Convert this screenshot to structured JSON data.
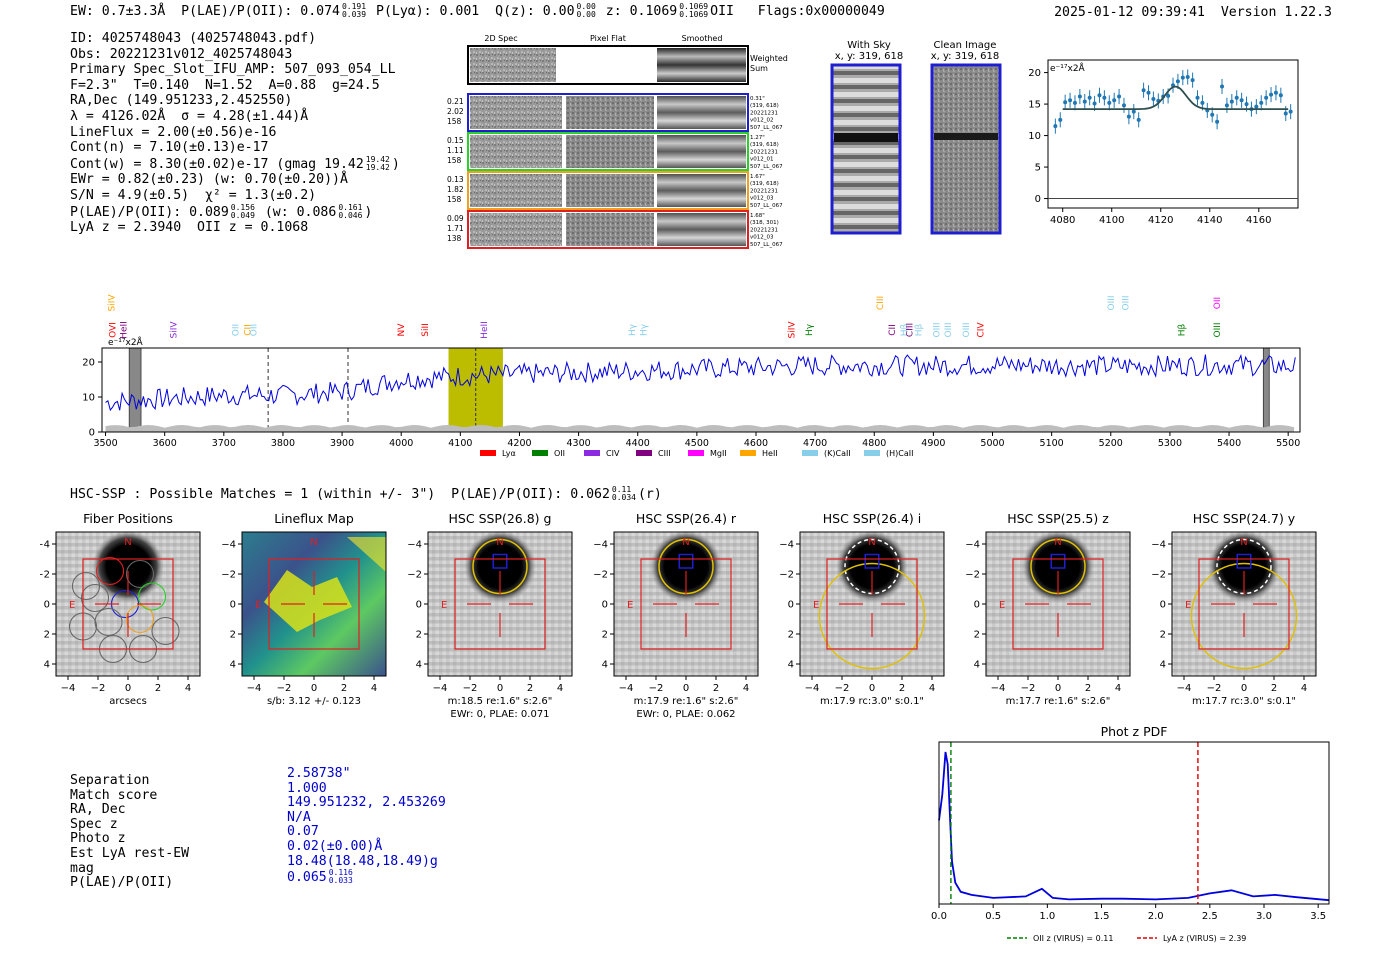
{
  "header": {
    "ew": "EW: 0.7±3.3Å",
    "plae_label": "P(LAE)/P(OII): 0.074",
    "plae_hi": "0.191",
    "plae_lo": "0.039",
    "plya": "P(Lyα): 0.001",
    "qz_label": "Q(z): 0.00",
    "qz_hi": "0.00",
    "qz_lo": "0.00",
    "z_label": "z: 0.1069",
    "z_hi": "0.1069",
    "z_lo": "0.1069",
    "z_line": "OII",
    "flags": "Flags:0x00000049",
    "datetime": "2025-01-12 09:39:41",
    "version": "Version 1.22.3"
  },
  "info": {
    "id": "ID: 4025748043 (4025748043.pdf)",
    "obs": "Obs: 20221231v012_4025748043",
    "primary": "Primary Spec_Slot_IFU_AMP: 507_093_054_LL",
    "f_line": "F=2.3\"  T=0.140  N=1.52  A=0.88  g=24.5",
    "radec": "RA,Dec (149.951233,2.452550)",
    "lambda": "λ = 4126.02Å  σ = 4.28(±1.44)Å",
    "lineflux": "LineFlux = 2.00(±0.56)e-16",
    "contn": "Cont(n) = 7.10(±0.13)e-17",
    "contw": "Cont(w) = 8.30(±0.02)e-17 (gmag 19.42",
    "contw_hi": "19.42",
    "contw_lo": "19.42",
    "contw_end": ")",
    "ewr": "EWr = 0.82(±0.23) (w: 0.70(±0.20))Å",
    "sn": "S/N = 4.9(±0.5)  χ² = 1.3(±0.2)",
    "plae": "P(LAE)/P(OII): 0.089",
    "plae_hi": "0.156",
    "plae_lo": "0.049",
    "plae_w": "(w: 0.086",
    "plae_w_hi": "0.161",
    "plae_w_lo": "0.046",
    "plae_end": ")",
    "lya": "LyA z = 2.3940  OII z = 0.1068"
  },
  "cutouts": {
    "col_2d": "2D Spec",
    "col_flat": "Pixel Flat",
    "col_smooth": "Smoothed",
    "weighted": [
      "Weighted",
      "Sum"
    ],
    "rows": [
      {
        "left": [
          "0.21",
          "2.02",
          "158"
        ],
        "right": [
          "0.31\"",
          "(319, 618)",
          "20221231",
          "v012_02",
          "507_LL_067"
        ],
        "color": "#1f1fd0"
      },
      {
        "left": [
          "0.15",
          "1.11",
          "158"
        ],
        "right": [
          "1.27\"",
          "(319, 618)",
          "20221231",
          "v012_01",
          "507_LL_067"
        ],
        "color": "#2bd02b"
      },
      {
        "left": [
          "0.13",
          "1.82",
          "158"
        ],
        "right": [
          "1.67\"",
          "(319, 618)",
          "20221231",
          "v012_03",
          "507_LL_067"
        ],
        "color": "#f0a020"
      },
      {
        "left": [
          "0.09",
          "1.71",
          "138"
        ],
        "right": [
          "1.68\"",
          "(318, 301)",
          "20221231",
          "v012_03",
          "507_LL_067"
        ],
        "color": "#e02020"
      }
    ],
    "with_sky": [
      "With Sky",
      "x, y: 319, 618"
    ],
    "clean": [
      "Clean Image",
      "x, y: 319, 618"
    ]
  },
  "zoom_plot": {
    "ylabel": "e⁻¹⁷x2Å",
    "xticks": [
      "4080",
      "4100",
      "4120",
      "4140",
      "4160"
    ],
    "yticks": [
      "0",
      "5",
      "10",
      "15",
      "20"
    ]
  },
  "full_spectrum": {
    "ylabel": "e⁻¹⁷x2Å",
    "xticks": [
      "3500",
      "3600",
      "3700",
      "3800",
      "3900",
      "4000",
      "4100",
      "4200",
      "4300",
      "4400",
      "4500",
      "4600",
      "4700",
      "4800",
      "4900",
      "5000",
      "5100",
      "5200",
      "5300",
      "5400",
      "5500"
    ],
    "yticks": [
      "0",
      "10",
      "20"
    ],
    "legend": [
      {
        "label": "Lyα",
        "color": "#ff0000"
      },
      {
        "label": "OII",
        "color": "#008000"
      },
      {
        "label": "CIV",
        "color": "#8a2be2"
      },
      {
        "label": "CIII",
        "color": "#800080"
      },
      {
        "label": "MgII",
        "color": "#ff00ff"
      },
      {
        "label": "HeII",
        "color": "#ffa500"
      },
      {
        "label": "(K)CaII",
        "color": "#87ceeb"
      },
      {
        "label": "(H)CaII",
        "color": "#87ceeb"
      }
    ],
    "lines_top": [
      {
        "label": "SiIV",
        "color": "#ffa500"
      },
      {
        "label": "CIII",
        "color": "#ffa500"
      },
      {
        "label": "OIII",
        "color": "#87ceeb"
      },
      {
        "label": "OIII",
        "color": "#87ceeb"
      },
      {
        "label": "OII",
        "color": "#ff00ff"
      }
    ],
    "lines_bottom": [
      {
        "label": "OVI",
        "color": "#ff0000"
      },
      {
        "label": "HeII",
        "color": "#800080"
      },
      {
        "label": "SiIV",
        "color": "#8a2be2"
      },
      {
        "label": "OII",
        "color": "#87ceeb"
      },
      {
        "label": "CII",
        "color": "#ffa500"
      },
      {
        "label": "OII",
        "color": "#87ceeb"
      },
      {
        "label": "NV",
        "color": "#ff0000"
      },
      {
        "label": "SiII",
        "color": "#ff0000"
      },
      {
        "label": "HeII",
        "color": "#8a2be2"
      },
      {
        "label": "Hγ",
        "color": "#87ceeb"
      },
      {
        "label": "Hγ",
        "color": "#87ceeb"
      },
      {
        "label": "SiIV",
        "color": "#ff0000"
      },
      {
        "label": "Hγ",
        "color": "#008000"
      },
      {
        "label": "CII",
        "color": "#800080"
      },
      {
        "label": "Hβ",
        "color": "#87ceeb"
      },
      {
        "label": "CIII",
        "color": "#800080"
      },
      {
        "label": "Hβ",
        "color": "#87ceeb"
      },
      {
        "label": "OIII",
        "color": "#87ceeb"
      },
      {
        "label": "OIII",
        "color": "#87ceeb"
      },
      {
        "label": "OIII",
        "color": "#87ceeb"
      },
      {
        "label": "CIV",
        "color": "#ff0000"
      },
      {
        "label": "Hβ",
        "color": "#008000"
      },
      {
        "label": "OIII",
        "color": "#008000"
      }
    ]
  },
  "hsc": {
    "title": "HSC-SSP : Possible Matches = 1 (within +/- 3\")  P(LAE)/P(OII): 0.062",
    "title_hi": "0.11",
    "title_lo": "0.034",
    "title_end": "(r)",
    "panels": [
      {
        "title": "Fiber Positions",
        "caption": [
          "arcsecs"
        ]
      },
      {
        "title": "Lineflux Map",
        "caption": [
          "s/b: 3.12 +/- 0.123"
        ]
      },
      {
        "title": "HSC SSP(26.8) g",
        "caption": [
          "m:18.5   re:1.6\"   s:2.6\"",
          "EWr: 0, PLAE: 0.071"
        ]
      },
      {
        "title": "HSC SSP(26.4) r",
        "caption": [
          "m:17.9   re:1.6\"   s:2.6\"",
          "EWr: 0, PLAE: 0.062"
        ]
      },
      {
        "title": "HSC SSP(26.4) i",
        "caption": [
          "m:17.9  rc:3.0\"   s:0.1\""
        ]
      },
      {
        "title": "HSC SSP(25.5) z",
        "caption": [
          "m:17.7   re:1.6\"   s:2.6\""
        ]
      },
      {
        "title": "HSC SSP(24.7) y",
        "caption": [
          "m:17.7  rc:3.0\"   s:0.1\""
        ]
      }
    ],
    "ticks": [
      "−4",
      "−2",
      "0",
      "2",
      "4"
    ],
    "n_label": "N",
    "e_label": "E"
  },
  "match": {
    "labels": [
      "Separation",
      "Match score",
      "RA, Dec",
      "Spec z",
      "Photo z",
      "Est LyA rest-EW",
      "mag",
      "P(LAE)/P(OII)"
    ],
    "values": [
      "2.58738\"",
      "1.000",
      "149.951232, 2.453269",
      "N/A",
      "0.07",
      "0.02(±0.00)Å",
      "18.48(18.48,18.49)g",
      "0.065"
    ],
    "plae_hi": "0.116",
    "plae_lo": "0.033"
  },
  "photz": {
    "title": "Phot z PDF",
    "xticks": [
      "0.0",
      "0.5",
      "1.0",
      "1.5",
      "2.0",
      "2.5",
      "3.0",
      "3.5"
    ],
    "legend_oii": "OII z (VIRUS) = 0.11",
    "legend_lya": "LyA z (VIRUS) = 2.39"
  },
  "chart_data": [
    {
      "type": "line",
      "title": "Line fit zoom",
      "ylabel": "e⁻¹⁷x2Å",
      "x": [
        4077,
        4079,
        4081,
        4083,
        4085,
        4087,
        4089,
        4091,
        4093,
        4095,
        4097,
        4099,
        4101,
        4103,
        4105,
        4107,
        4109,
        4111,
        4113,
        4115,
        4117,
        4119,
        4121,
        4123,
        4125,
        4127,
        4129,
        4131,
        4133,
        4135,
        4137,
        4139,
        4141,
        4143,
        4145,
        4147,
        4149,
        4151,
        4153,
        4155,
        4157,
        4159,
        4161,
        4163,
        4165,
        4167,
        4169,
        4171,
        4173
      ],
      "y": [
        11.5,
        12.5,
        15.3,
        15.6,
        15.2,
        16.2,
        15.4,
        16.0,
        15.1,
        16.4,
        16.0,
        15.2,
        15.6,
        16.2,
        14.8,
        13.0,
        13.8,
        12.5,
        17.2,
        16.8,
        15.8,
        15.5,
        16.2,
        16.3,
        18.0,
        18.6,
        19.2,
        19.3,
        18.8,
        16.0,
        15.2,
        14.0,
        13.3,
        12.2,
        17.8,
        14.8,
        15.4,
        16.0,
        15.6,
        15.0,
        14.2,
        14.6,
        15.2,
        16.0,
        16.5,
        16.8,
        16.4,
        13.5,
        13.8
      ],
      "fit_continuum": 14.2,
      "fit_center": 4126,
      "fit_sigma": 4.28,
      "fit_amplitude": 3.6,
      "xlim": [
        4074,
        4176
      ],
      "ylim": [
        -1.5,
        22
      ]
    },
    {
      "type": "line",
      "title": "Full spectrum",
      "ylabel": "e⁻¹⁷x2Å",
      "xlim": [
        3494,
        5520
      ],
      "ylim": [
        0,
        24
      ],
      "series_trend": {
        "x": [
          3500,
          3600,
          3700,
          3800,
          3900,
          4000,
          4100,
          4200,
          4300,
          4400,
          4500,
          4600,
          4700,
          4800,
          4900,
          5000,
          5100,
          5200,
          5300,
          5400,
          5500
        ],
        "y": [
          8.5,
          9.5,
          10.5,
          10.5,
          11.5,
          15.0,
          16.0,
          16.5,
          17.0,
          17.5,
          18.0,
          18.5,
          19.0,
          19.0,
          19.0,
          19.2,
          19.0,
          18.8,
          19.0,
          19.2,
          18.8
        ]
      },
      "highlight_range": [
        4080,
        4172
      ],
      "line_center": 4126,
      "dashed_markers": [
        3775,
        3910
      ],
      "masked_ranges": [
        [
          3540,
          3560
        ],
        [
          5458,
          5468
        ]
      ]
    },
    {
      "type": "line",
      "title": "Phot z PDF",
      "x": [
        0.0,
        0.03,
        0.06,
        0.08,
        0.1,
        0.12,
        0.15,
        0.2,
        0.3,
        0.5,
        0.8,
        0.95,
        1.05,
        1.2,
        1.5,
        1.7,
        2.0,
        2.3,
        2.5,
        2.7,
        2.9,
        3.1,
        3.3,
        3.6
      ],
      "y": [
        0.55,
        0.72,
        1.0,
        0.92,
        0.6,
        0.28,
        0.14,
        0.08,
        0.06,
        0.04,
        0.05,
        0.1,
        0.04,
        0.03,
        0.035,
        0.035,
        0.03,
        0.04,
        0.07,
        0.09,
        0.05,
        0.06,
        0.045,
        0.025
      ],
      "oii_z": 0.11,
      "lya_z": 2.39,
      "xlim": [
        0,
        3.6
      ]
    }
  ]
}
